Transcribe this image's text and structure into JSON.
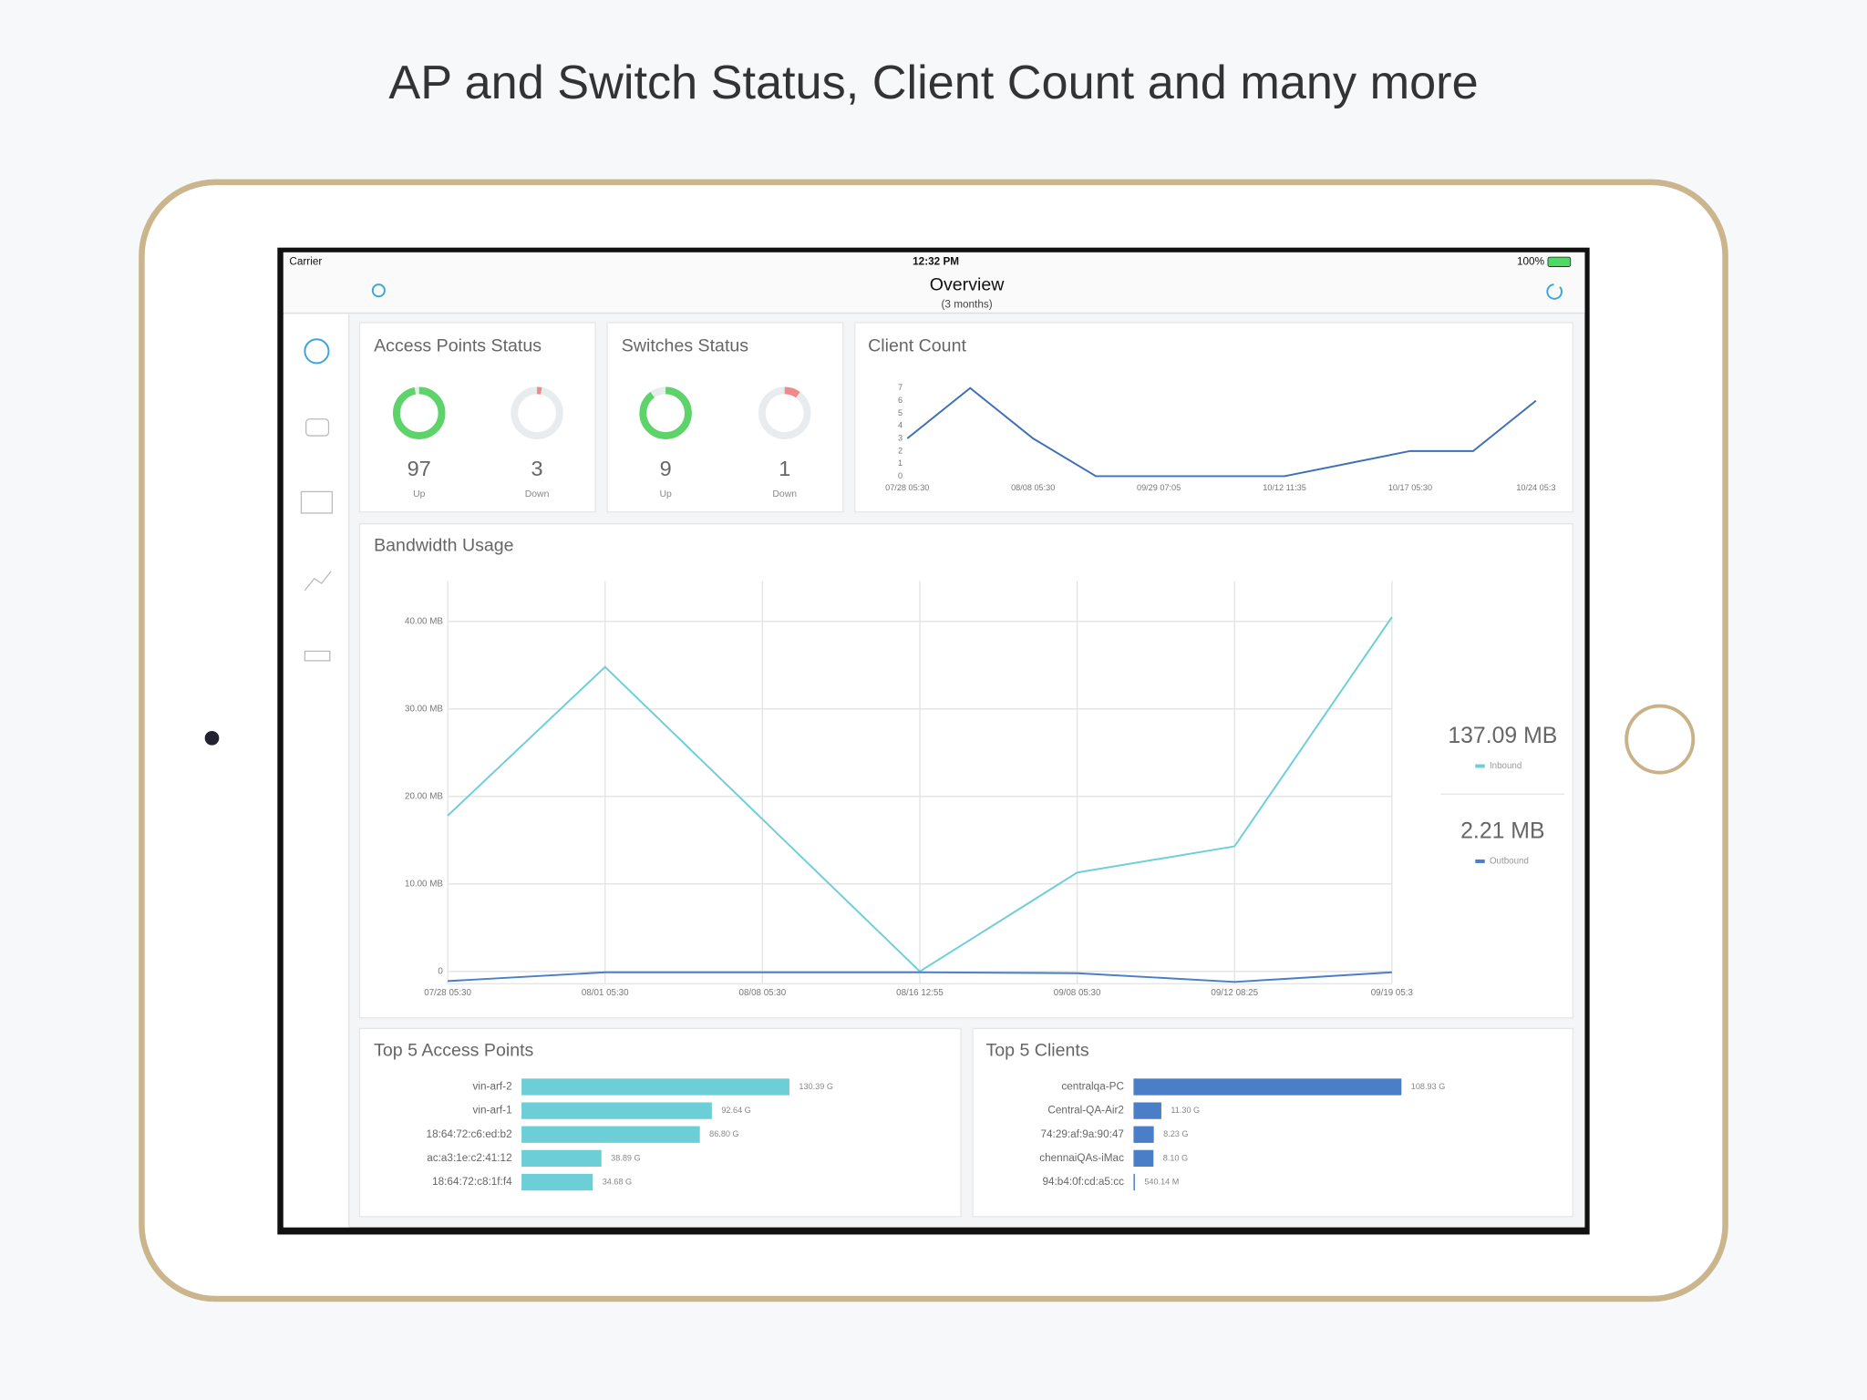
{
  "headline": "AP and Switch Status, Client Count and many more",
  "status_bar": {
    "carrier": "Carrier",
    "time": "12:32 PM",
    "battery": "100%"
  },
  "nav": {
    "title": "Overview",
    "subtitle": "(3 months)"
  },
  "access_points_status": {
    "title": "Access Points Status",
    "items": [
      {
        "label": "Up",
        "value": 97,
        "color": "#5dd36a"
      },
      {
        "label": "Down",
        "value": 3,
        "color": "#f08a8a"
      }
    ]
  },
  "switches_status": {
    "title": "Switches Status",
    "items": [
      {
        "label": "Up",
        "value": 9,
        "color": "#5dd36a"
      },
      {
        "label": "Down",
        "value": 1,
        "color": "#f08a8a"
      }
    ]
  },
  "client_count": {
    "chart_data": {
      "type": "line",
      "title": "Client Count",
      "categories": [
        "07/28 05:30",
        null,
        "08/08 05:30",
        null,
        "09/29 07:05",
        null,
        "10/12 11:35",
        null,
        "10/17 05:30",
        null,
        "10/24 05:3"
      ],
      "values": [
        3,
        7,
        3,
        0,
        0,
        0,
        0,
        1,
        2,
        2,
        6
      ],
      "color": "#3f6fb8",
      "ylim": [
        0,
        7
      ],
      "yticks": [
        0,
        1,
        2,
        3,
        4,
        5,
        6,
        7
      ],
      "grid": false
    }
  },
  "bandwidth_usage": {
    "chart_data": {
      "type": "line",
      "title": "Bandwidth Usage",
      "categories": [
        "07/28 05:30",
        "08/01 05:30",
        "08/08 05:30",
        "08/16 12:55",
        "09/08 05:30",
        "09/12 08:25",
        "09/19 05:3"
      ],
      "series": [
        {
          "name": "Inbound",
          "color": "#6ccfd8",
          "values": [
            17.8,
            34.8,
            17.4,
            0,
            11.3,
            14.3,
            40.5
          ]
        },
        {
          "name": "Outbound",
          "color": "#4a7ec7",
          "values": [
            -1.1,
            -0.1,
            -0.1,
            -0.1,
            -0.2,
            -1.2,
            -0.1
          ]
        }
      ],
      "ylim": [
        -1.4,
        44.6
      ],
      "yticks": [
        0,
        {
          "value": 10,
          "label": "10.00 MB"
        },
        {
          "value": 20,
          "label": "20.00 MB"
        },
        {
          "value": 30,
          "label": "30.00 MB"
        },
        {
          "value": 40,
          "label": "40.00 MB"
        }
      ],
      "grid": true
    },
    "totals": [
      "137.09 MB",
      "2.21 MB"
    ]
  },
  "top_access_points": {
    "chart_data": {
      "type": "hbar",
      "title": "Top 5 Access Points",
      "categories": [
        "vin-arf-2",
        "vin-arf-1",
        "18:64:72:c6:ed:b2",
        "ac:a3:1e:c2:41:12",
        "18:64:72:c8:1f:f4"
      ],
      "values": [
        130.39,
        92.64,
        86.8,
        38.89,
        34.68
      ],
      "value_labels": [
        "130.39 G",
        "92.64 G",
        "86.80 G",
        "38.89 G",
        "34.68 G"
      ],
      "color": "#6ccfd8"
    }
  },
  "top_clients": {
    "chart_data": {
      "type": "hbar",
      "title": "Top 5 Clients",
      "categories": [
        "centralqa-PC",
        "Central-QA-Air2",
        "74:29:af:9a:90:47",
        "chennaiQAs-iMac",
        "94:b4:0f:cd:a5:cc"
      ],
      "values": [
        108.93,
        11.3,
        8.23,
        8.1,
        0.54014
      ],
      "value_labels": [
        "108.93 G",
        "11.30 G",
        "8.23 G",
        "8.10 G",
        "540.14 M"
      ],
      "color": "#4a7ec7"
    }
  }
}
